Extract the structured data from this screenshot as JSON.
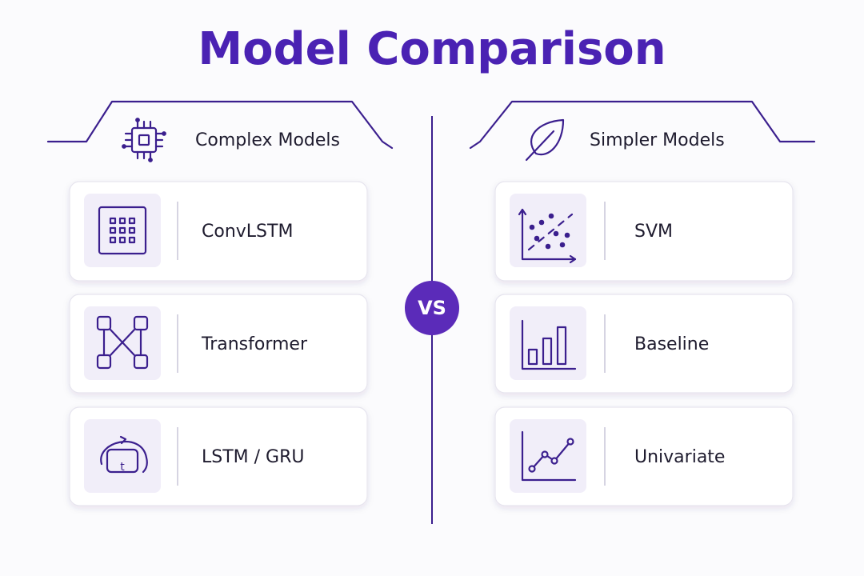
{
  "title": "Model Comparison",
  "vs": "VS",
  "columns": [
    {
      "heading": "Complex Models",
      "items": [
        {
          "label": "ConvLSTM"
        },
        {
          "label": "Transformer"
        },
        {
          "label": "LSTM / GRU",
          "icon_text": "t"
        }
      ]
    },
    {
      "heading": "Simpler Models",
      "items": [
        {
          "label": "SVM"
        },
        {
          "label": "Baseline"
        },
        {
          "label": "Univariate"
        }
      ]
    }
  ]
}
